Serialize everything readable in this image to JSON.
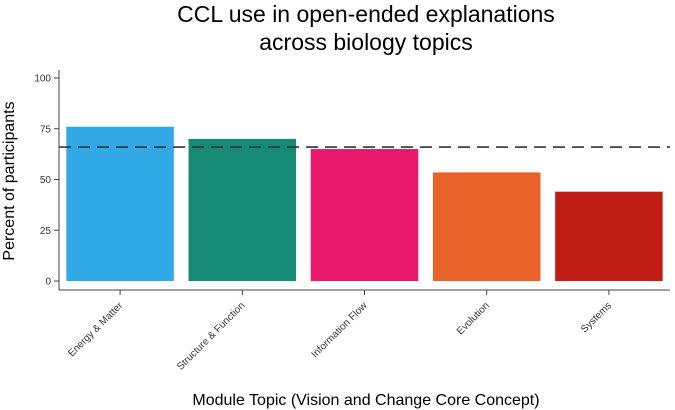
{
  "chart_data": {
    "type": "bar",
    "title": [
      "CCL use in open-ended explanations",
      "across biology topics"
    ],
    "xlabel": "Module Topic (Vision and Change Core Concept)",
    "ylabel": "Percent of participants",
    "categories": [
      "Energy & Matter",
      "Structure & Function",
      "Information Flow",
      "Evolution",
      "Systems"
    ],
    "values": [
      76,
      70,
      65,
      53.5,
      44
    ],
    "colors": [
      "#30a9e6",
      "#158a74",
      "#e8196a",
      "#e8622a",
      "#c01e15"
    ],
    "ylim": [
      0,
      100
    ],
    "yticks": [
      0,
      25,
      50,
      75,
      100
    ],
    "reference_line": 66,
    "grid": false
  }
}
